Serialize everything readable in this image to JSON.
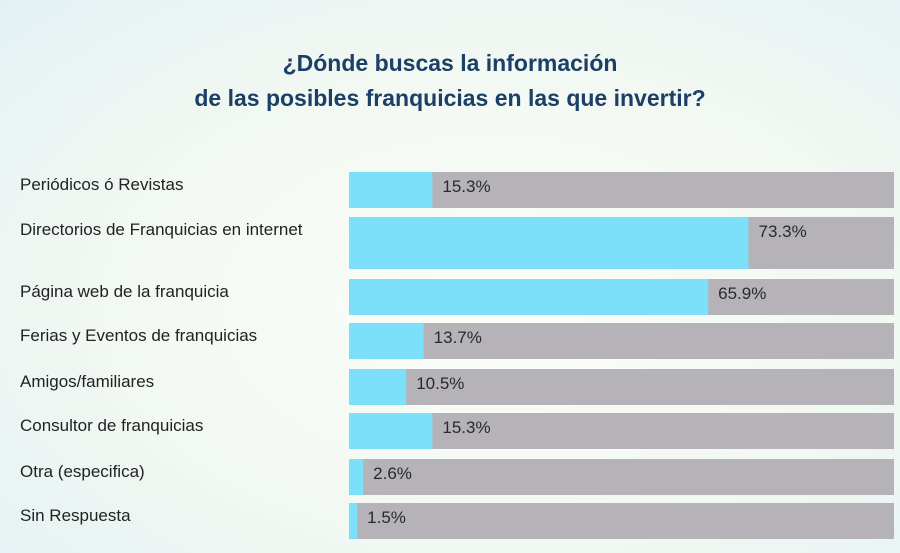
{
  "colors": {
    "fill": "#7ce0fb",
    "track": "#b5b2b8",
    "title": "#1b3f66",
    "text": "#222222"
  },
  "chart_data": {
    "type": "bar",
    "orientation": "horizontal",
    "title": [
      "¿Dónde buscas la información",
      "de las posibles franquicias en las que invertir?"
    ],
    "categories": [
      "Periódicos ó Revistas",
      "Directorios de Franquicias en internet",
      "Página web de la franquicia",
      "Ferias y Eventos de franquicias",
      "Amigos/familiares",
      "Consultor de franquicias",
      "Otra (especifica)",
      "Sin Respuesta"
    ],
    "values": [
      15.3,
      73.3,
      65.9,
      13.7,
      10.5,
      15.3,
      2.6,
      1.5
    ],
    "value_labels": [
      "15.3%",
      "73.3%",
      "65.9%",
      "13.7%",
      "10.5%",
      "15.3%",
      "2.6%",
      "1.5%"
    ],
    "xlim": [
      0,
      100
    ],
    "unit": "%",
    "legend": "none",
    "grid": false
  }
}
